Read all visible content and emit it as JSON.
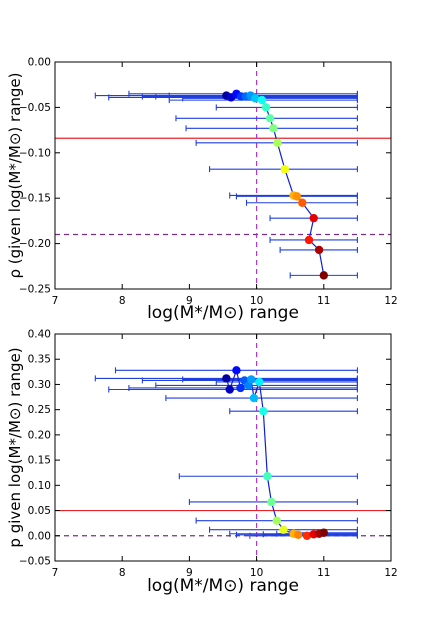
{
  "chart_data": [
    {
      "type": "scatter",
      "xlabel": "log(M*/M⊙) range",
      "ylabel": "ρ (given log(M*/M⊙) range)",
      "xlim": [
        7,
        12
      ],
      "ylim": [
        -0.25,
        0.0
      ],
      "xticks": [
        "7",
        "8",
        "9",
        "10",
        "11",
        "12"
      ],
      "yticks": [
        "0.00",
        "−0.05",
        "−0.10",
        "−0.15",
        "−0.20",
        "−0.25"
      ],
      "grid": false,
      "hlines": [
        {
          "y": -0.084,
          "style": "solid",
          "color": "#e8242b"
        },
        {
          "y": -0.19,
          "style": "dashed",
          "color": "#7b2d8e"
        }
      ],
      "vlines": [
        {
          "x": 10.0,
          "style": "dashed",
          "color": "#b238d6"
        }
      ],
      "series": [
        {
          "points": [
            {
              "x": 9.55,
              "y": -0.037,
              "xmin": 7.6,
              "xmax": 11.5
            },
            {
              "x": 9.62,
              "y": -0.039,
              "xmin": 7.8,
              "xmax": 11.5
            },
            {
              "x": 9.7,
              "y": -0.035,
              "xmin": 8.1,
              "xmax": 11.5
            },
            {
              "x": 9.77,
              "y": -0.038,
              "xmin": 8.3,
              "xmax": 11.5
            },
            {
              "x": 9.84,
              "y": -0.038,
              "xmin": 8.5,
              "xmax": 11.5
            },
            {
              "x": 9.91,
              "y": -0.037,
              "xmin": 8.7,
              "xmax": 11.5
            },
            {
              "x": 9.98,
              "y": -0.04,
              "xmin": 8.9,
              "xmax": 11.5
            },
            {
              "x": 10.08,
              "y": -0.042,
              "xmin": 8.7,
              "xmax": 11.5
            },
            {
              "x": 10.14,
              "y": -0.05,
              "xmin": 9.4,
              "xmax": 11.5
            },
            {
              "x": 10.2,
              "y": -0.062,
              "xmin": 8.8,
              "xmax": 11.5
            },
            {
              "x": 10.25,
              "y": -0.073,
              "xmin": 8.95,
              "xmax": 11.5
            },
            {
              "x": 10.31,
              "y": -0.089,
              "xmin": 9.1,
              "xmax": 11.5
            },
            {
              "x": 10.42,
              "y": -0.118,
              "xmin": 9.3,
              "xmax": 11.5
            },
            {
              "x": 10.55,
              "y": -0.147,
              "xmin": 9.6,
              "xmax": 11.5
            },
            {
              "x": 10.6,
              "y": -0.148,
              "xmin": 9.7,
              "xmax": 11.5
            },
            {
              "x": 10.68,
              "y": -0.155,
              "xmin": 9.85,
              "xmax": 11.5
            },
            {
              "x": 10.85,
              "y": -0.172,
              "xmin": 10.2,
              "xmax": 11.5
            },
            {
              "x": 10.78,
              "y": -0.196,
              "xmin": 10.2,
              "xmax": 11.5
            },
            {
              "x": 10.93,
              "y": -0.207,
              "xmin": 10.35,
              "xmax": 11.5
            },
            {
              "x": 11.0,
              "y": -0.235,
              "xmin": 10.5,
              "xmax": 11.5
            }
          ]
        }
      ]
    },
    {
      "type": "scatter",
      "xlabel": "log(M*/M⊙) range",
      "ylabel": "p given log(M*/M⊙) range)",
      "xlim": [
        7,
        12
      ],
      "ylim": [
        -0.05,
        0.4
      ],
      "xticks": [
        "7",
        "8",
        "9",
        "10",
        "11",
        "12"
      ],
      "yticks": [
        "0.40",
        "0.35",
        "0.30",
        "0.25",
        "0.20",
        "0.15",
        "0.10",
        "0.05",
        "0.00",
        "−0.05"
      ],
      "grid": false,
      "hlines": [
        {
          "y": 0.05,
          "style": "solid",
          "color": "#e8242b"
        },
        {
          "y": 0.0,
          "style": "dashed",
          "color": "#7b2d8e"
        }
      ],
      "vlines": [
        {
          "x": 10.0,
          "style": "dashed",
          "color": "#b238d6"
        }
      ],
      "series": [
        {
          "points": [
            {
              "x": 9.55,
              "y": 0.312,
              "xmin": 7.6,
              "xmax": 11.5
            },
            {
              "x": 9.6,
              "y": 0.29,
              "xmin": 7.8,
              "xmax": 11.5
            },
            {
              "x": 9.7,
              "y": 0.328,
              "xmin": 7.9,
              "xmax": 11.5
            },
            {
              "x": 9.76,
              "y": 0.293,
              "xmin": 8.1,
              "xmax": 11.5
            },
            {
              "x": 9.82,
              "y": 0.308,
              "xmin": 8.3,
              "xmax": 11.5
            },
            {
              "x": 9.88,
              "y": 0.298,
              "xmin": 8.5,
              "xmax": 11.5
            },
            {
              "x": 9.92,
              "y": 0.31,
              "xmin": 8.9,
              "xmax": 11.5
            },
            {
              "x": 9.96,
              "y": 0.273,
              "xmin": 8.65,
              "xmax": 11.5
            },
            {
              "x": 10.04,
              "y": 0.305,
              "xmin": 9.4,
              "xmax": 11.5
            },
            {
              "x": 10.1,
              "y": 0.247,
              "xmin": 9.6,
              "xmax": 11.5
            },
            {
              "x": 10.16,
              "y": 0.118,
              "xmin": 8.85,
              "xmax": 11.5
            },
            {
              "x": 10.22,
              "y": 0.067,
              "xmin": 9.0,
              "xmax": 11.5
            },
            {
              "x": 10.3,
              "y": 0.03,
              "xmin": 9.1,
              "xmax": 11.5
            },
            {
              "x": 10.4,
              "y": 0.012,
              "xmin": 9.3,
              "xmax": 11.5
            },
            {
              "x": 10.55,
              "y": 0.004,
              "xmin": 9.6,
              "xmax": 11.5
            },
            {
              "x": 10.62,
              "y": 0.002,
              "xmin": 9.7,
              "xmax": 11.5
            },
            {
              "x": 10.75,
              "y": 0.0,
              "xmin": 9.9,
              "xmax": 11.5
            },
            {
              "x": 10.85,
              "y": 0.003,
              "xmin": 10.1,
              "xmax": 11.5
            },
            {
              "x": 10.93,
              "y": 0.004,
              "xmin": 10.3,
              "xmax": 11.5
            },
            {
              "x": 11.0,
              "y": 0.006,
              "xmin": 10.5,
              "xmax": 11.5
            }
          ]
        }
      ]
    }
  ]
}
